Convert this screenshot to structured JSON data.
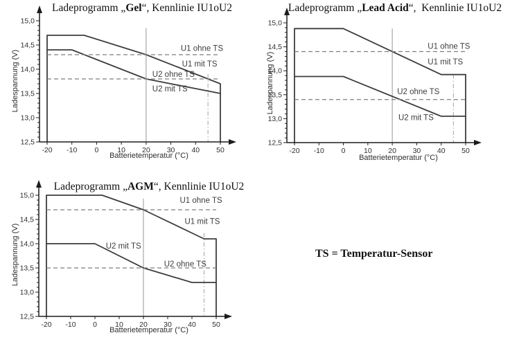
{
  "note": {
    "text": "TS = Temperatur-Sensor"
  },
  "colors": {
    "curve": "#3c3c3c",
    "dashed_line": "#7e7e7e",
    "reference_line": "#a0a0a0",
    "axis": "#1c1c1c"
  },
  "chart_data": [
    {
      "id": "gel",
      "type": "line",
      "title": {
        "prefix": "Ladeprogramm „",
        "name": "Gel",
        "suffix": "“, Kennlinie IU1oU2"
      },
      "xlabel": "Batterietemperatur (°C)",
      "ylabel": "Ladespannung (V)",
      "xlim": [
        -20,
        50
      ],
      "ylim": [
        12.5,
        15.0
      ],
      "xtick_values": [
        -20,
        -10,
        0,
        10,
        20,
        30,
        40,
        50
      ],
      "xtick_labels": [
        "-20",
        "-10",
        "0",
        "10",
        "20",
        "30",
        "40",
        "50"
      ],
      "ytick_values": [
        15.0,
        14.5,
        14.0,
        13.5,
        13.0,
        12.5
      ],
      "ytick_labels": [
        "15,0",
        "14,5",
        "14,0",
        "13,5",
        "13,0",
        "12,5"
      ],
      "y_minor_step": 0.1,
      "series": [
        {
          "name": "U1 mit TS",
          "style": "solid",
          "side_walls": true,
          "points": [
            [
              -20,
              14.7
            ],
            [
              -5,
              14.7
            ],
            [
              20,
              14.3
            ],
            [
              50,
              13.7
            ]
          ],
          "label": {
            "text": "U1 mit TS",
            "t": 34.5,
            "v": 14.06
          }
        },
        {
          "name": "U2 mit TS",
          "style": "solid",
          "side_walls": false,
          "points": [
            [
              -20,
              14.4
            ],
            [
              -10,
              14.4
            ],
            [
              20,
              13.8
            ],
            [
              50,
              13.5
            ]
          ],
          "label": {
            "text": "U2 mit TS",
            "t": 22.5,
            "v": 13.54
          }
        },
        {
          "name": "U1 ohne TS",
          "style": "dashed",
          "value": 14.3,
          "label": {
            "text": "U1 ohne TS",
            "t": 34.0,
            "v": 14.38
          }
        },
        {
          "name": "U2 ohne TS",
          "style": "dashed",
          "value": 13.8,
          "label": {
            "text": "U2 ohne TS",
            "t": 22.5,
            "v": 13.84
          }
        }
      ],
      "reference_lines": [
        {
          "t": 20,
          "style": "solid",
          "v_top": 14.85
        },
        {
          "t": 45,
          "style": "dashdot",
          "v_top": 13.9
        }
      ]
    },
    {
      "id": "lead-acid",
      "type": "line",
      "title": {
        "prefix": "Ladeprogramm „",
        "name": "Lead Acid",
        "suffix": "“,  Kennlinie IU1oU2"
      },
      "xlabel": "Batterietemperatur (°C)",
      "ylabel": "Ladespannung (V)",
      "xlim": [
        -20,
        50
      ],
      "ylim": [
        12.5,
        15.0
      ],
      "xtick_values": [
        -20,
        -10,
        0,
        10,
        20,
        30,
        40,
        50
      ],
      "xtick_labels": [
        "-20",
        "-10",
        "0",
        "10",
        "20",
        "30",
        "40",
        "50"
      ],
      "ytick_values": [
        15.0,
        14.5,
        14.0,
        13.5,
        13.0,
        12.5
      ],
      "ytick_labels": [
        "15,0",
        "14,5",
        "14,0",
        "13,5",
        "13,0",
        "12,5"
      ],
      "y_minor_step": 0.1,
      "series": [
        {
          "name": "U1 mit TS",
          "style": "solid",
          "side_walls": true,
          "points": [
            [
              -20,
              14.88
            ],
            [
              0,
              14.88
            ],
            [
              40,
              13.92
            ],
            [
              50,
              13.92
            ]
          ],
          "label": {
            "text": "U1 mit TS",
            "t": 34.5,
            "v": 14.13
          }
        },
        {
          "name": "U2 mit TS",
          "style": "solid",
          "side_walls": false,
          "points": [
            [
              -20,
              13.88
            ],
            [
              0,
              13.88
            ],
            [
              40,
              13.05
            ],
            [
              50,
              13.05
            ]
          ],
          "label": {
            "text": "U2 mit TS",
            "t": 22.5,
            "v": 12.97
          }
        },
        {
          "name": "U1 ohne TS",
          "style": "dashed",
          "value": 14.4,
          "label": {
            "text": "U1 ohne TS",
            "t": 34.5,
            "v": 14.46
          }
        },
        {
          "name": "U2 ohne TS",
          "style": "dashed",
          "value": 13.4,
          "label": {
            "text": "U2 ohne TS",
            "t": 22.0,
            "v": 13.51
          }
        }
      ],
      "reference_lines": [
        {
          "t": 20,
          "style": "solid",
          "v_top": 14.88
        },
        {
          "t": 45,
          "style": "dashdot",
          "v_top": 13.92
        }
      ]
    },
    {
      "id": "agm",
      "type": "line",
      "title": {
        "prefix": "Ladeprogramm „",
        "name": "AGM",
        "suffix": "“, Kennlinie IU1oU2"
      },
      "xlabel": "Batterietemperatur (°C)",
      "ylabel": "Ladespannung (V)",
      "xlim": [
        -20,
        50
      ],
      "ylim": [
        12.5,
        15.0
      ],
      "xtick_values": [
        -20,
        -10,
        0,
        10,
        20,
        30,
        40,
        50
      ],
      "xtick_labels": [
        "-20",
        "-10",
        "0",
        "10",
        "20",
        "30",
        "40",
        "50"
      ],
      "ytick_values": [
        15.0,
        14.5,
        14.0,
        13.5,
        13.0,
        12.5
      ],
      "ytick_labels": [
        "15,0",
        "14,5",
        "14,0",
        "13,5",
        "13,0",
        "12,5"
      ],
      "y_minor_step": 0.1,
      "series": [
        {
          "name": "U1 mit TS",
          "style": "solid",
          "side_walls": true,
          "points": [
            [
              -20,
              15.0
            ],
            [
              3,
              15.0
            ],
            [
              20,
              14.7
            ],
            [
              45,
              14.1
            ],
            [
              50,
              14.1
            ]
          ],
          "label": {
            "text": "U1 mit TS",
            "t": 37.0,
            "v": 14.41
          }
        },
        {
          "name": "U2 mit TS",
          "style": "solid",
          "side_walls": false,
          "points": [
            [
              -20,
              14.0
            ],
            [
              0,
              14.0
            ],
            [
              20,
              13.5
            ],
            [
              40,
              13.2
            ],
            [
              50,
              13.2
            ]
          ],
          "label": {
            "text": "U2 mit TS",
            "t": 4.5,
            "v": 13.9
          }
        },
        {
          "name": "U1 ohne TS",
          "style": "dashed",
          "value": 14.7,
          "label": {
            "text": "U1 ohne TS",
            "t": 35.0,
            "v": 14.84
          }
        },
        {
          "name": "U2 ohne TS",
          "style": "dashed",
          "value": 13.5,
          "label": {
            "text": "U2 ohne TS",
            "t": 28.5,
            "v": 13.53
          }
        }
      ],
      "reference_lines": [
        {
          "t": 20,
          "style": "solid",
          "v_top": 14.93
        },
        {
          "t": 45,
          "style": "dashdot",
          "v_top": 14.22
        }
      ]
    }
  ]
}
